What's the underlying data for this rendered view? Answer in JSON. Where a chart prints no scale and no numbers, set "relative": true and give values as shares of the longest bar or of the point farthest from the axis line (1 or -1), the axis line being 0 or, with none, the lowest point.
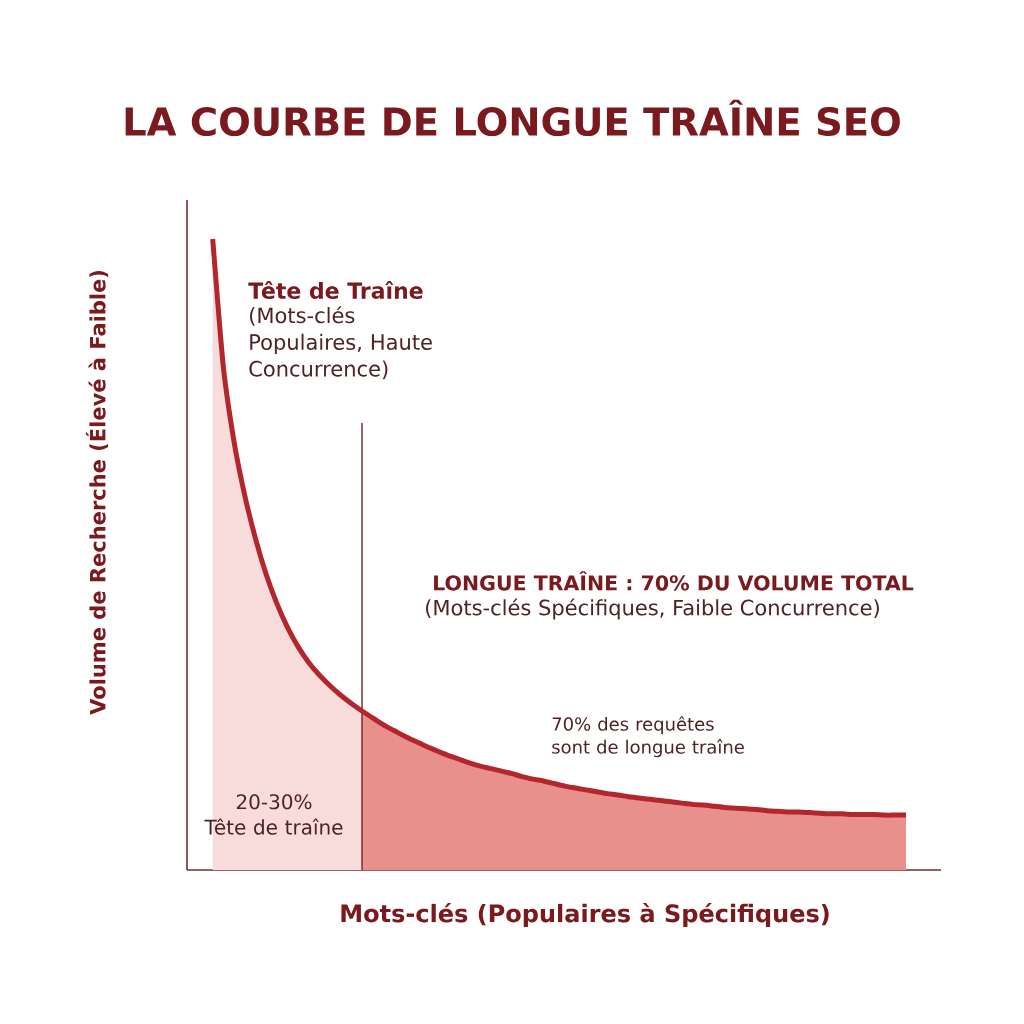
{
  "chart_data": {
    "type": "area",
    "title": "LA COURBE DE LONGUE TRAÎNE SEO",
    "xlabel": "Mots-clés (Populaires à Spécifiques)",
    "ylabel": "Volume de Recherche (Élevé à Faible)",
    "relative": true,
    "categories": [
      null,
      null,
      null,
      null,
      null,
      null,
      null,
      null,
      null,
      null,
      null,
      null,
      null,
      null,
      null,
      null,
      null,
      null,
      null,
      null,
      null,
      null,
      null,
      null,
      null,
      null,
      null,
      null,
      null,
      null,
      null,
      null,
      null,
      null,
      null,
      null,
      null,
      null,
      null,
      null,
      null,
      null,
      null,
      null,
      null,
      null,
      null,
      null,
      null,
      null,
      null,
      null,
      null,
      null,
      null,
      null,
      null,
      null,
      null,
      null,
      null,
      null,
      null,
      null,
      null,
      null
    ],
    "series": [
      {
        "color": "#f8dcdc",
        "values": [
          1.0,
          0.797,
          0.679,
          0.594,
          0.526,
          0.469,
          0.423,
          0.385,
          0.354,
          0.329,
          0.309,
          0.292,
          0.277,
          0.264,
          0.252,
          null,
          null,
          null,
          null,
          null,
          null,
          null,
          null,
          null,
          null,
          null,
          null,
          null,
          null,
          null,
          null,
          null,
          null,
          null,
          null,
          null,
          null,
          null,
          null,
          null,
          null,
          null,
          null,
          null,
          null,
          null,
          null,
          null,
          null,
          null,
          null,
          null,
          null,
          null,
          null,
          null,
          null,
          null,
          null,
          null,
          null,
          null,
          null,
          null,
          null,
          null
        ]
      },
      {
        "color": "#e8918c",
        "values": [
          null,
          null,
          null,
          null,
          null,
          null,
          null,
          null,
          null,
          null,
          null,
          null,
          null,
          null,
          0.252,
          0.241,
          0.23,
          0.221,
          0.212,
          0.204,
          0.196,
          0.189,
          0.182,
          0.176,
          0.17,
          0.165,
          0.161,
          0.157,
          0.153,
          0.148,
          0.144,
          0.141,
          0.137,
          0.133,
          0.13,
          0.127,
          0.124,
          0.121,
          0.119,
          0.116,
          0.114,
          0.112,
          0.11,
          0.108,
          0.106,
          0.104,
          0.103,
          0.101,
          0.099,
          0.098,
          0.097,
          0.096,
          0.094,
          0.093,
          0.092,
          0.092,
          0.091,
          0.09,
          0.089,
          0.089,
          0.088,
          0.088,
          0.088,
          0.087,
          0.087,
          0.087
        ]
      },
      {
        "type": "line",
        "color": "#b3262b",
        "values": [
          1.0,
          0.797,
          0.679,
          0.594,
          0.526,
          0.469,
          0.423,
          0.385,
          0.354,
          0.329,
          0.309,
          0.292,
          0.277,
          0.264,
          0.252,
          0.241,
          0.23,
          0.221,
          0.212,
          0.204,
          0.196,
          0.189,
          0.182,
          0.176,
          0.17,
          0.165,
          0.161,
          0.157,
          0.153,
          0.148,
          0.144,
          0.141,
          0.137,
          0.133,
          0.13,
          0.127,
          0.124,
          0.121,
          0.119,
          0.116,
          0.114,
          0.112,
          0.11,
          0.108,
          0.106,
          0.104,
          0.103,
          0.101,
          0.099,
          0.098,
          0.097,
          0.096,
          0.094,
          0.093,
          0.092,
          0.092,
          0.091,
          0.09,
          0.089,
          0.089,
          0.088,
          0.088,
          0.088,
          0.087,
          0.087,
          0.087
        ]
      }
    ],
    "annotations": [
      "Tête de Traîne",
      "(Mots-clés Populaires, Haute Concurrence)",
      "LONGUE TRAÎNE : 70% DU VOLUME TOTAL",
      "(Mots-clés Spécifiques, Faible Concurrence)",
      "70% des requêtes sont de longue traîne",
      "20-30% Tête de traîne"
    ]
  }
}
